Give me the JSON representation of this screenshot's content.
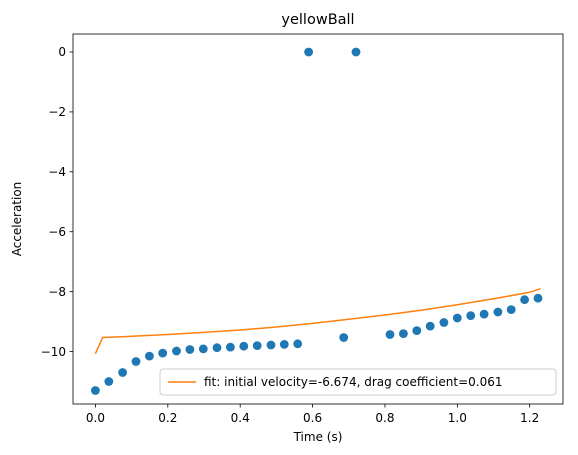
{
  "chart_data": {
    "type": "scatter",
    "title": "yellowBall",
    "xlabel": "Time (s)",
    "ylabel": "Acceleration",
    "xlim": [
      -0.062,
      1.292
    ],
    "ylim": [
      -11.75,
      0.6
    ],
    "xticks": [
      0.0,
      0.2,
      0.4,
      0.6,
      0.8,
      1.0,
      1.2
    ],
    "xtick_labels": [
      "0.0",
      "0.2",
      "0.4",
      "0.6",
      "0.8",
      "1.0",
      "1.2"
    ],
    "yticks": [
      0,
      -2,
      -4,
      -6,
      -8,
      -10
    ],
    "ytick_labels": [
      "0",
      "−2",
      "−4",
      "−6",
      "−8",
      "−10"
    ],
    "grid": false,
    "legend_position": "lower-right",
    "series": [
      {
        "kind": "scatter",
        "color": "#1f77b4",
        "x": [
          0.0,
          0.037,
          0.075,
          0.112,
          0.149,
          0.186,
          0.224,
          0.261,
          0.298,
          0.336,
          0.373,
          0.41,
          0.447,
          0.485,
          0.522,
          0.559,
          0.589,
          0.686,
          0.72,
          0.814,
          0.851,
          0.888,
          0.925,
          0.963,
          1.0,
          1.037,
          1.074,
          1.112,
          1.149,
          1.186,
          1.223
        ],
        "y": [
          -11.3,
          -11.0,
          -10.7,
          -10.33,
          -10.15,
          -10.05,
          -9.98,
          -9.93,
          -9.91,
          -9.87,
          -9.85,
          -9.82,
          -9.8,
          -9.78,
          -9.76,
          -9.74,
          0.0,
          -9.53,
          0.0,
          -9.43,
          -9.4,
          -9.3,
          -9.15,
          -9.03,
          -8.88,
          -8.8,
          -8.75,
          -8.68,
          -8.6,
          -8.27,
          -8.22
        ]
      },
      {
        "kind": "line",
        "name": "fit: initial velocity=-6.674, drag coefficient=0.061",
        "color": "#ff7f0e",
        "x": [
          0.0,
          0.02,
          0.1,
          0.2,
          0.3,
          0.4,
          0.5,
          0.6,
          0.7,
          0.8,
          0.9,
          1.0,
          1.1,
          1.2,
          1.23
        ],
        "y": [
          -10.07,
          -9.53,
          -9.49,
          -9.43,
          -9.36,
          -9.28,
          -9.18,
          -9.06,
          -8.92,
          -8.78,
          -8.62,
          -8.44,
          -8.24,
          -8.02,
          -7.9
        ]
      }
    ]
  }
}
